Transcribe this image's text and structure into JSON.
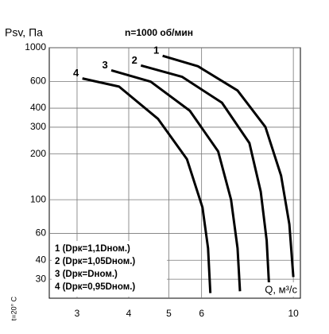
{
  "chart_data": {
    "type": "line",
    "title": "n=1000 об/мин",
    "y_label": "Psv, Па",
    "x_label": "Q, м³/с",
    "note": "t=20° C",
    "log_x": true,
    "log_y": true,
    "grid": true,
    "xlim": [
      2.57,
      10.4
    ],
    "xticks": [
      3,
      4,
      5,
      6,
      10
    ],
    "ylim": [
      22.5,
      1000
    ],
    "yticks": [
      30,
      40,
      60,
      100,
      200,
      300,
      400,
      600,
      1000
    ],
    "legend": "bottom-left",
    "series": [
      {
        "name": "1 (Dрк=1,1Dном.)",
        "label": "1",
        "color": "#000000",
        "x": [
          4.83,
          5.88,
          7.33,
          8.56,
          9.34,
          9.78,
          10.0
        ],
        "values": [
          885,
          755,
          523,
          301,
          144,
          69,
          31
        ]
      },
      {
        "name": "2 (Dрк=1,05Dном.)",
        "label": "2",
        "color": "#000000",
        "x": [
          4.28,
          5.38,
          6.72,
          7.83,
          8.34,
          8.62,
          8.75
        ],
        "values": [
          764,
          644,
          435,
          236,
          113,
          54,
          25
        ]
      },
      {
        "name": "3 (Dрк=Dном.)",
        "label": "3",
        "color": "#000000",
        "x": [
          3.63,
          4.52,
          5.62,
          6.58,
          7.07,
          7.33,
          7.43
        ],
        "values": [
          710,
          598,
          385,
          208,
          100,
          48,
          25
        ]
      },
      {
        "name": "4 (Dрк=0,95Dном.)",
        "label": "4",
        "color": "#000000",
        "x": [
          3.09,
          3.79,
          4.71,
          5.53,
          6.03,
          6.22,
          6.3
        ],
        "values": [
          628,
          555,
          340,
          185,
          89,
          48,
          24.3
        ]
      }
    ]
  }
}
